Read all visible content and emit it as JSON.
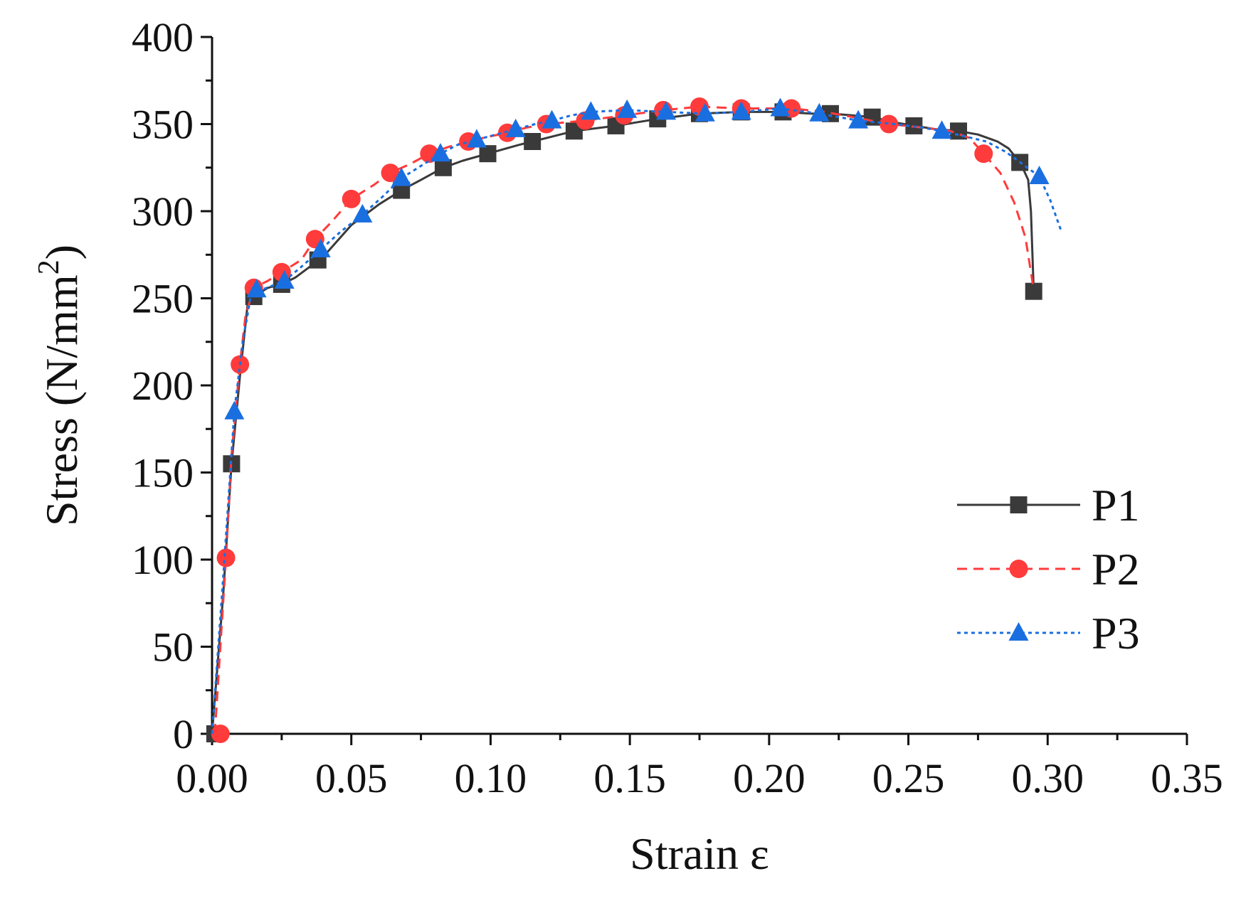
{
  "chart_data": {
    "type": "line",
    "title": "",
    "xlabel": "Strain ε",
    "ylabel_main": "Stress (N/mm",
    "ylabel_sup": "2",
    "ylabel_close": ")",
    "xlim": [
      0,
      0.35
    ],
    "ylim": [
      0,
      400
    ],
    "xticks": [
      0,
      0.05,
      0.1,
      0.15,
      0.2,
      0.25,
      0.3,
      0.35
    ],
    "xtick_labels": [
      "0.00",
      "0.05",
      "0.10",
      "0.15",
      "0.20",
      "0.25",
      "0.30",
      "0.35"
    ],
    "yticks": [
      0,
      50,
      100,
      150,
      200,
      250,
      300,
      350,
      400
    ],
    "ytick_labels": [
      "0",
      "50",
      "100",
      "150",
      "200",
      "250",
      "300",
      "350",
      "400"
    ],
    "grid": false,
    "legend_position": "lower-right",
    "series": [
      {
        "name": "P1",
        "color": "#3a3a3a",
        "dash": "solid",
        "marker": "square",
        "curve": [
          [
            0,
            0
          ],
          [
            0.004,
            80
          ],
          [
            0.007,
            155
          ],
          [
            0.01,
            205
          ],
          [
            0.013,
            250
          ],
          [
            0.016,
            252
          ],
          [
            0.02,
            256
          ],
          [
            0.025,
            258
          ],
          [
            0.03,
            262
          ],
          [
            0.035,
            268
          ],
          [
            0.04,
            274
          ],
          [
            0.05,
            292
          ],
          [
            0.06,
            304
          ],
          [
            0.068,
            312
          ],
          [
            0.075,
            318
          ],
          [
            0.083,
            325
          ],
          [
            0.09,
            329
          ],
          [
            0.099,
            333
          ],
          [
            0.11,
            338
          ],
          [
            0.115,
            340
          ],
          [
            0.125,
            344
          ],
          [
            0.13,
            346
          ],
          [
            0.145,
            349
          ],
          [
            0.16,
            353
          ],
          [
            0.175,
            356
          ],
          [
            0.19,
            357
          ],
          [
            0.205,
            357
          ],
          [
            0.215,
            356
          ],
          [
            0.222,
            356
          ],
          [
            0.23,
            355
          ],
          [
            0.237,
            354
          ],
          [
            0.245,
            351
          ],
          [
            0.252,
            349
          ],
          [
            0.26,
            347
          ],
          [
            0.268,
            346
          ],
          [
            0.275,
            344
          ],
          [
            0.282,
            340
          ],
          [
            0.286,
            336
          ],
          [
            0.289,
            330
          ],
          [
            0.291,
            325
          ],
          [
            0.293,
            318
          ],
          [
            0.294,
            300
          ],
          [
            0.295,
            254
          ]
        ],
        "markers": [
          [
            0.001,
            0
          ],
          [
            0.007,
            155
          ],
          [
            0.015,
            251
          ],
          [
            0.025,
            258
          ],
          [
            0.038,
            272
          ],
          [
            0.068,
            312
          ],
          [
            0.083,
            325
          ],
          [
            0.099,
            333
          ],
          [
            0.115,
            340
          ],
          [
            0.13,
            346
          ],
          [
            0.145,
            349
          ],
          [
            0.16,
            353
          ],
          [
            0.175,
            356
          ],
          [
            0.19,
            357
          ],
          [
            0.205,
            357
          ],
          [
            0.222,
            356
          ],
          [
            0.237,
            354
          ],
          [
            0.252,
            349
          ],
          [
            0.268,
            346
          ],
          [
            0.29,
            328
          ],
          [
            0.295,
            254
          ]
        ]
      },
      {
        "name": "P2",
        "color": "#ff3b3b",
        "dash": "dashed",
        "marker": "circle",
        "curve": [
          [
            0.001,
            0
          ],
          [
            0.003,
            50
          ],
          [
            0.005,
            101
          ],
          [
            0.007,
            160
          ],
          [
            0.01,
            212
          ],
          [
            0.012,
            240
          ],
          [
            0.015,
            256
          ],
          [
            0.02,
            260
          ],
          [
            0.025,
            265
          ],
          [
            0.032,
            272
          ],
          [
            0.037,
            284
          ],
          [
            0.043,
            294
          ],
          [
            0.05,
            307
          ],
          [
            0.058,
            315
          ],
          [
            0.064,
            322
          ],
          [
            0.071,
            327
          ],
          [
            0.078,
            333
          ],
          [
            0.085,
            337
          ],
          [
            0.092,
            340
          ],
          [
            0.1,
            343
          ],
          [
            0.106,
            345
          ],
          [
            0.113,
            348
          ],
          [
            0.12,
            350
          ],
          [
            0.127,
            351
          ],
          [
            0.134,
            352
          ],
          [
            0.148,
            355
          ],
          [
            0.162,
            358
          ],
          [
            0.175,
            360
          ],
          [
            0.19,
            359
          ],
          [
            0.208,
            359
          ],
          [
            0.22,
            357
          ],
          [
            0.23,
            354
          ],
          [
            0.243,
            350
          ],
          [
            0.255,
            348
          ],
          [
            0.265,
            346
          ],
          [
            0.272,
            342
          ],
          [
            0.277,
            333
          ],
          [
            0.283,
            322
          ],
          [
            0.288,
            305
          ],
          [
            0.292,
            285
          ],
          [
            0.295,
            255
          ]
        ],
        "markers": [
          [
            0.003,
            0
          ],
          [
            0.005,
            101
          ],
          [
            0.01,
            212
          ],
          [
            0.015,
            256
          ],
          [
            0.025,
            265
          ],
          [
            0.037,
            284
          ],
          [
            0.05,
            307
          ],
          [
            0.064,
            322
          ],
          [
            0.078,
            333
          ],
          [
            0.092,
            340
          ],
          [
            0.106,
            345
          ],
          [
            0.12,
            350
          ],
          [
            0.134,
            352
          ],
          [
            0.148,
            355
          ],
          [
            0.162,
            358
          ],
          [
            0.175,
            360
          ],
          [
            0.19,
            359
          ],
          [
            0.208,
            359
          ],
          [
            0.243,
            350
          ],
          [
            0.277,
            333
          ]
        ]
      },
      {
        "name": "P3",
        "color": "#1a6fe0",
        "dash": "dotted",
        "marker": "triangle",
        "curve": [
          [
            0,
            0
          ],
          [
            0.004,
            90
          ],
          [
            0.008,
            185
          ],
          [
            0.011,
            225
          ],
          [
            0.014,
            252
          ],
          [
            0.018,
            255
          ],
          [
            0.026,
            260
          ],
          [
            0.032,
            268
          ],
          [
            0.039,
            278
          ],
          [
            0.046,
            288
          ],
          [
            0.054,
            298
          ],
          [
            0.061,
            308
          ],
          [
            0.068,
            319
          ],
          [
            0.075,
            326
          ],
          [
            0.082,
            333
          ],
          [
            0.088,
            338
          ],
          [
            0.095,
            341
          ],
          [
            0.102,
            344
          ],
          [
            0.109,
            347
          ],
          [
            0.116,
            350
          ],
          [
            0.122,
            352
          ],
          [
            0.129,
            355
          ],
          [
            0.136,
            357
          ],
          [
            0.149,
            358
          ],
          [
            0.163,
            357
          ],
          [
            0.177,
            356
          ],
          [
            0.19,
            357
          ],
          [
            0.204,
            359
          ],
          [
            0.218,
            356
          ],
          [
            0.232,
            352
          ],
          [
            0.245,
            350
          ],
          [
            0.255,
            348
          ],
          [
            0.262,
            346
          ],
          [
            0.27,
            343
          ],
          [
            0.278,
            340
          ],
          [
            0.285,
            334
          ],
          [
            0.291,
            327
          ],
          [
            0.297,
            320
          ],
          [
            0.301,
            306
          ],
          [
            0.305,
            288
          ]
        ],
        "markers": [
          [
            0.008,
            185
          ],
          [
            0.016,
            255
          ],
          [
            0.026,
            260
          ],
          [
            0.039,
            278
          ],
          [
            0.054,
            298
          ],
          [
            0.068,
            319
          ],
          [
            0.082,
            333
          ],
          [
            0.095,
            341
          ],
          [
            0.109,
            347
          ],
          [
            0.122,
            352
          ],
          [
            0.136,
            357
          ],
          [
            0.149,
            358
          ],
          [
            0.163,
            357
          ],
          [
            0.177,
            356
          ],
          [
            0.19,
            357
          ],
          [
            0.204,
            359
          ],
          [
            0.218,
            356
          ],
          [
            0.232,
            352
          ],
          [
            0.262,
            346
          ],
          [
            0.297,
            320
          ]
        ]
      }
    ]
  }
}
